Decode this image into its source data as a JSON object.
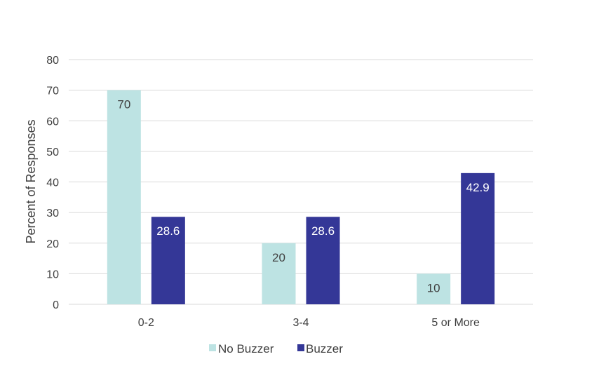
{
  "chart_data": {
    "type": "bar",
    "title": "",
    "xlabel": "",
    "ylabel": "Percent of Responses",
    "categories": [
      "0-2",
      "3-4",
      "5 or More"
    ],
    "series": [
      {
        "name": "No Buzzer",
        "values": [
          70,
          20,
          10
        ],
        "color": "#bde3e3",
        "label_color": "#404040"
      },
      {
        "name": "Buzzer",
        "values": [
          28.6,
          28.6,
          42.9
        ],
        "color": "#343797",
        "label_color": "#ffffff"
      }
    ],
    "ylim": [
      0,
      80
    ],
    "yticks": [
      0,
      10,
      20,
      30,
      40,
      50,
      60,
      70,
      80
    ],
    "grid": true,
    "gridline_color": "#d9d9d9",
    "legend_position": "bottom"
  }
}
